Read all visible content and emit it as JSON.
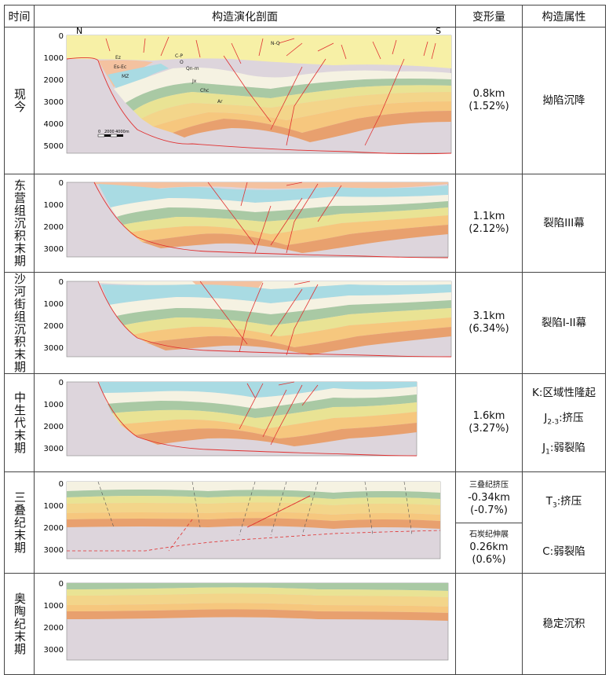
{
  "header": {
    "time": "时间",
    "section": "构造演化剖面",
    "deformation": "变形量",
    "attribute": "构造属性"
  },
  "rows": [
    {
      "time": "现今",
      "deformation": [
        "0.8km",
        "(1.52%)"
      ],
      "attribute": "拗陷沉降",
      "depth_ticks": [
        "0",
        "1000",
        "2000",
        "3000",
        "4000",
        "5000"
      ]
    },
    {
      "time": "东营组沉积末期",
      "deformation": [
        "1.1km",
        "(2.12%)"
      ],
      "attribute": "裂陷III幕",
      "depth_ticks": [
        "0",
        "1000",
        "2000",
        "3000"
      ]
    },
    {
      "time": "沙河街组沉积末期",
      "deformation": [
        "3.1km",
        "(6.34%)"
      ],
      "attribute": "裂陷I-II幕",
      "depth_ticks": [
        "0",
        "1000",
        "2000",
        "3000"
      ]
    },
    {
      "time": "中生代末期",
      "deformation": [
        "1.6km",
        "(3.27%)"
      ],
      "attribute_lines": [
        {
          "main": "K:区域性隆起"
        },
        {
          "main": "J",
          "sub": "2-3",
          "rest": ":挤压"
        },
        {
          "main": "J",
          "sub": "1",
          "rest": ":弱裂陷"
        }
      ],
      "depth_ticks": [
        "0",
        "1000",
        "2000",
        "3000"
      ]
    },
    {
      "time": "三叠纪末期",
      "deformation_top": [
        "三叠纪挤压",
        "-0.34km",
        "(-0.7%)"
      ],
      "deformation_bottom": [
        "石炭纪伸展",
        "0.26km",
        "(0.6%)"
      ],
      "attribute_lines": [
        {
          "main": "T",
          "sub": "3",
          "rest": ":挤压"
        },
        {
          "main": "C:弱裂陷"
        }
      ],
      "depth_ticks": [
        "0",
        "1000",
        "2000",
        "3000"
      ]
    },
    {
      "time": "奥陶纪末期",
      "attribute": "稳定沉积",
      "depth_ticks": [
        "0",
        "1000",
        "2000",
        "3000"
      ]
    }
  ],
  "section_labels": {
    "north": "N",
    "south": "S",
    "units": [
      "Ez",
      "Es-Ec",
      "MZ",
      "C-P",
      "O",
      "Qn-m",
      "Jx",
      "Chc",
      "Ar",
      "N-Q"
    ],
    "scale": [
      "0",
      "2000",
      "4000m"
    ]
  },
  "colors": {
    "quaternary": "#f7f0a6",
    "ed": "#f4c2a0",
    "es": "#a9dbe3",
    "mz": "#f5f2e2",
    "cp": "#a9c9a4",
    "o": "#e9e394",
    "qnm": "#f3d58a",
    "jx": "#f6c77e",
    "chc": "#e8a06e",
    "ar": "#ddd5dc",
    "fault": "#e03030"
  }
}
